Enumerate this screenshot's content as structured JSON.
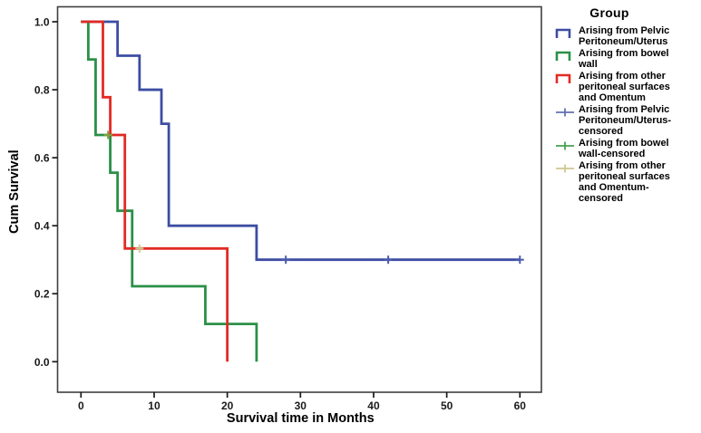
{
  "chart_data": {
    "type": "line",
    "subtype": "kaplan-meier-step",
    "title": "",
    "xlabel": "Survival time in Months",
    "ylabel": "Cum Survival",
    "xticks": [
      0,
      10,
      20,
      30,
      40,
      50,
      60
    ],
    "ytick_labels": [
      "0.0",
      "0.2",
      "0.4",
      "0.6",
      "0.8",
      "1.0"
    ],
    "ytick_values": [
      0.0,
      0.2,
      0.4,
      0.6,
      0.8,
      1.0
    ],
    "xlim": [
      -3.2,
      63
    ],
    "ylim": [
      -0.09,
      1.045
    ],
    "grid": false,
    "legend_position": "right",
    "legend_title": "Group",
    "series": [
      {
        "name": "Arising from Pelvic Peritoneum/Uterus",
        "color": "#3d4da2",
        "steps": [
          [
            0,
            1.0
          ],
          [
            5,
            0.9
          ],
          [
            8,
            0.8
          ],
          [
            11,
            0.7
          ],
          [
            12,
            0.4
          ],
          [
            24,
            0.3
          ]
        ],
        "end_x": 60
      },
      {
        "name": "Arising from bowel wall",
        "color": "#2b9046",
        "steps": [
          [
            0,
            1.0
          ],
          [
            1,
            0.889
          ],
          [
            2,
            0.667
          ],
          [
            4,
            0.556
          ],
          [
            5,
            0.444
          ],
          [
            7,
            0.222
          ],
          [
            17,
            0.111
          ],
          [
            24,
            0.0
          ]
        ],
        "end_x": 24
      },
      {
        "name": "Arising from other peritoneal surfaces and Omentum",
        "color": "#e12b24",
        "steps": [
          [
            0,
            1.0
          ],
          [
            3,
            0.778
          ],
          [
            4,
            0.667
          ],
          [
            6,
            0.333
          ],
          [
            20,
            0.0
          ]
        ],
        "end_x": 20
      }
    ],
    "censored": [
      {
        "name": "Arising from Pelvic Peritoneum/Uterus-censored",
        "color": "#4d5bad",
        "points": [
          [
            28,
            0.3
          ],
          [
            42,
            0.3
          ],
          [
            60,
            0.3
          ]
        ]
      },
      {
        "name": "Arising from bowel wall-censored",
        "color": "#7da33f",
        "points": [
          [
            3.7,
            0.667
          ]
        ]
      },
      {
        "name": "Arising from other peritoneal surfaces and Omentum-censored",
        "color": "#cfc88e",
        "points": [
          [
            8,
            0.333
          ]
        ]
      }
    ]
  },
  "axes": {
    "x_title": "Survival time in Months",
    "y_title": "Cum Survival"
  },
  "legend": {
    "title": "Group",
    "entries": [
      {
        "label": "Arising from Pelvic\nPeritoneum/Uterus",
        "marker": "step",
        "color": "#3d4da2"
      },
      {
        "label": "Arising from bowel\nwall",
        "marker": "step",
        "color": "#2b9046"
      },
      {
        "label": "Arising from other\nperitoneal surfaces\nand Omentum",
        "marker": "step",
        "color": "#e12b24"
      },
      {
        "label": "Arising from Pelvic\nPeritoneum/Uterus-\ncensored",
        "marker": "plus",
        "color": "#6571b5"
      },
      {
        "label": "Arising from bowel\nwall-censored",
        "marker": "plus",
        "color": "#47a050"
      },
      {
        "label": "Arising from other\nperitoneal surfaces\nand Omentum-\ncensored",
        "marker": "plus",
        "color": "#cfc88e"
      }
    ]
  },
  "frame_color": "#3f3f3f",
  "tick_color": "#1a1a1a"
}
